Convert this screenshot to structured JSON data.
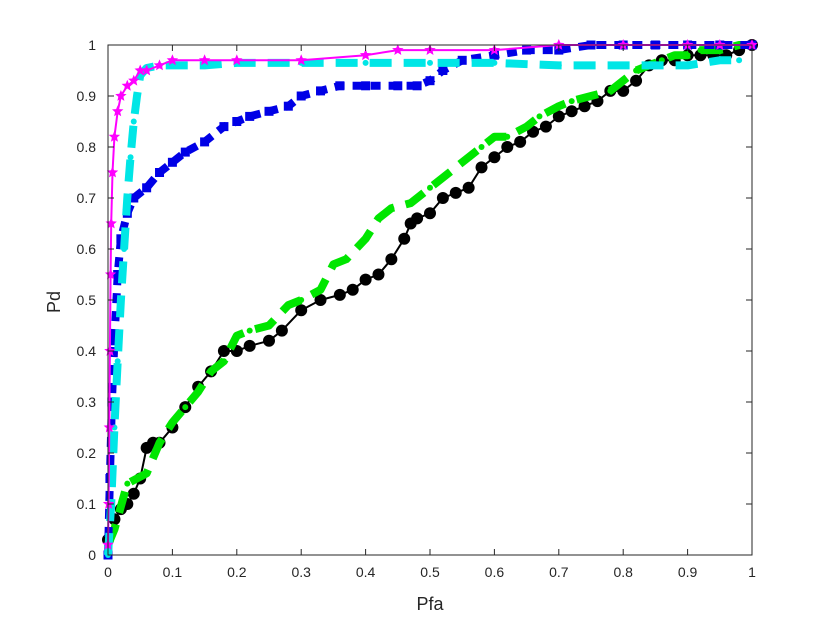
{
  "chart_data": {
    "type": "line",
    "xlabel": "Pfa",
    "ylabel": "Pd",
    "xlim": [
      0,
      1
    ],
    "ylim": [
      0,
      1
    ],
    "grid": false,
    "legend": "none",
    "xticks": [
      "0",
      "0.1",
      "0.2",
      "0.3",
      "0.4",
      "0.5",
      "0.6",
      "0.7",
      "0.8",
      "0.9",
      "1"
    ],
    "yticks": [
      "0",
      "0.1",
      "0.2",
      "0.3",
      "0.4",
      "0.5",
      "0.6",
      "0.7",
      "0.8",
      "0.9",
      "1"
    ],
    "series": [
      {
        "color": "#000000",
        "marker": "circle",
        "x": [
          0.0,
          0.01,
          0.02,
          0.03,
          0.04,
          0.05,
          0.06,
          0.07,
          0.08,
          0.1,
          0.12,
          0.14,
          0.16,
          0.18,
          0.2,
          0.22,
          0.25,
          0.27,
          0.3,
          0.33,
          0.36,
          0.38,
          0.4,
          0.42,
          0.44,
          0.46,
          0.47,
          0.48,
          0.5,
          0.52,
          0.54,
          0.56,
          0.58,
          0.6,
          0.62,
          0.64,
          0.66,
          0.68,
          0.7,
          0.72,
          0.74,
          0.76,
          0.78,
          0.8,
          0.82,
          0.84,
          0.86,
          0.88,
          0.9,
          0.92,
          0.94,
          0.96,
          0.98,
          1.0
        ],
        "y": [
          0.03,
          0.07,
          0.09,
          0.1,
          0.12,
          0.15,
          0.21,
          0.22,
          0.22,
          0.25,
          0.29,
          0.33,
          0.36,
          0.4,
          0.4,
          0.41,
          0.42,
          0.44,
          0.48,
          0.5,
          0.51,
          0.52,
          0.54,
          0.55,
          0.58,
          0.62,
          0.65,
          0.66,
          0.67,
          0.7,
          0.71,
          0.72,
          0.76,
          0.78,
          0.8,
          0.81,
          0.83,
          0.84,
          0.86,
          0.87,
          0.88,
          0.89,
          0.91,
          0.91,
          0.93,
          0.96,
          0.97,
          0.97,
          0.98,
          0.98,
          0.98,
          0.98,
          0.99,
          1.0
        ]
      },
      {
        "color": "#00e600",
        "marker": "dash",
        "x": [
          0.0,
          0.01,
          0.03,
          0.06,
          0.08,
          0.1,
          0.12,
          0.14,
          0.16,
          0.18,
          0.2,
          0.22,
          0.25,
          0.28,
          0.3,
          0.33,
          0.35,
          0.37,
          0.4,
          0.42,
          0.44,
          0.47,
          0.5,
          0.52,
          0.56,
          0.58,
          0.6,
          0.62,
          0.65,
          0.67,
          0.7,
          0.72,
          0.75,
          0.78,
          0.8,
          0.82,
          0.84,
          0.86,
          0.88,
          0.9,
          0.92,
          0.95,
          0.98,
          1.0
        ],
        "y": [
          0.02,
          0.05,
          0.14,
          0.16,
          0.22,
          0.26,
          0.29,
          0.32,
          0.36,
          0.38,
          0.43,
          0.44,
          0.45,
          0.49,
          0.5,
          0.52,
          0.57,
          0.58,
          0.62,
          0.66,
          0.68,
          0.69,
          0.72,
          0.74,
          0.78,
          0.8,
          0.82,
          0.82,
          0.84,
          0.86,
          0.88,
          0.89,
          0.9,
          0.91,
          0.93,
          0.95,
          0.96,
          0.97,
          0.98,
          0.98,
          0.99,
          0.99,
          1.0,
          1.0
        ]
      },
      {
        "color": "#0000e6",
        "marker": "square",
        "x": [
          0.0,
          0.003,
          0.006,
          0.01,
          0.015,
          0.02,
          0.03,
          0.04,
          0.06,
          0.08,
          0.1,
          0.12,
          0.15,
          0.18,
          0.2,
          0.22,
          0.25,
          0.28,
          0.3,
          0.33,
          0.36,
          0.4,
          0.45,
          0.48,
          0.5,
          0.52,
          0.55,
          0.6,
          0.65,
          0.7,
          0.75,
          0.8,
          0.85,
          0.9,
          0.95,
          1.0
        ],
        "y": [
          0.0,
          0.15,
          0.3,
          0.42,
          0.55,
          0.62,
          0.67,
          0.7,
          0.72,
          0.75,
          0.77,
          0.79,
          0.81,
          0.84,
          0.85,
          0.86,
          0.87,
          0.88,
          0.9,
          0.91,
          0.92,
          0.92,
          0.92,
          0.92,
          0.93,
          0.95,
          0.97,
          0.98,
          0.99,
          0.99,
          1.0,
          1.0,
          1.0,
          1.0,
          1.0,
          1.0
        ]
      },
      {
        "color": "#00e6e6",
        "marker": "dash",
        "x": [
          0.0,
          0.005,
          0.01,
          0.015,
          0.02,
          0.025,
          0.03,
          0.035,
          0.04,
          0.045,
          0.05,
          0.06,
          0.08,
          0.1,
          0.15,
          0.2,
          0.3,
          0.4,
          0.5,
          0.6,
          0.7,
          0.8,
          0.9,
          0.95,
          0.98
        ],
        "y": [
          0.0,
          0.1,
          0.25,
          0.38,
          0.5,
          0.6,
          0.7,
          0.78,
          0.85,
          0.9,
          0.94,
          0.955,
          0.96,
          0.96,
          0.96,
          0.965,
          0.965,
          0.965,
          0.965,
          0.965,
          0.96,
          0.96,
          0.96,
          0.97,
          0.97
        ]
      },
      {
        "color": "#ff00ff",
        "marker": "star",
        "x": [
          0.0,
          0.001,
          0.002,
          0.003,
          0.004,
          0.005,
          0.007,
          0.01,
          0.015,
          0.02,
          0.03,
          0.04,
          0.05,
          0.06,
          0.08,
          0.1,
          0.15,
          0.2,
          0.3,
          0.4,
          0.45,
          0.5,
          0.6,
          0.7,
          0.8,
          0.9,
          0.95,
          1.0
        ],
        "y": [
          0.02,
          0.1,
          0.25,
          0.4,
          0.55,
          0.65,
          0.75,
          0.82,
          0.87,
          0.9,
          0.92,
          0.93,
          0.95,
          0.95,
          0.96,
          0.97,
          0.97,
          0.97,
          0.97,
          0.98,
          0.99,
          0.99,
          0.99,
          1.0,
          1.0,
          1.0,
          1.0,
          1.0
        ]
      }
    ]
  }
}
